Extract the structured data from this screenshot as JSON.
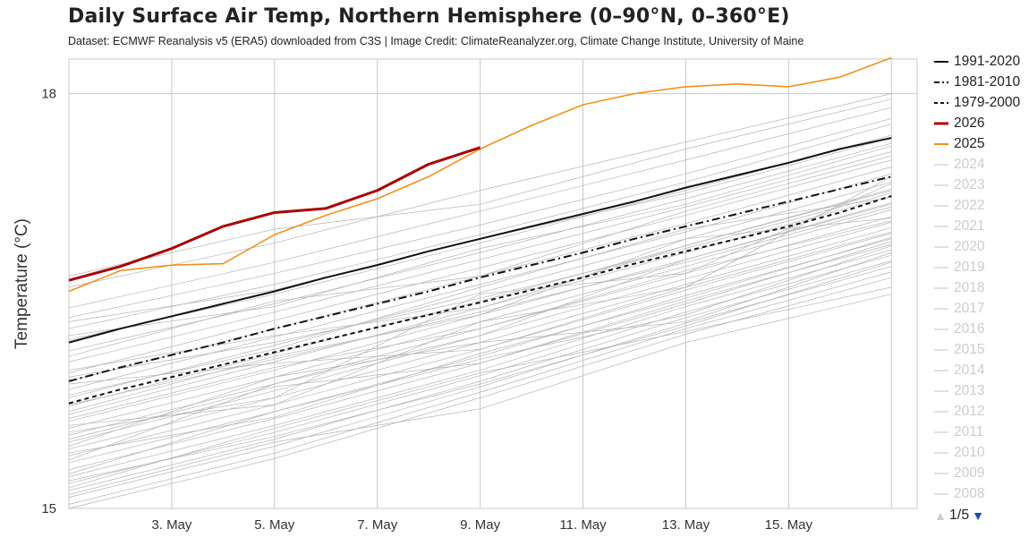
{
  "header": {
    "title": "Daily Surface Air Temp, Northern Hemisphere (0–90°N, 0–360°E)",
    "subtitle": "Dataset: ECMWF Reanalysis v5 (ERA5) downloaded from C3S | Image Credit: ClimateReanalyzer.org, Climate Change Institute, University of Maine"
  },
  "legend_nav": {
    "page": "1/5",
    "up_icon": "triangle-up-icon",
    "down_icon": "triangle-down-icon"
  },
  "colors": {
    "y2026": "#aa0000",
    "y2025": "#f39019",
    "climatology": "#111111",
    "other_years": "#b4b4b4",
    "grid": "#c8c8c8",
    "nav": "#1f4aa8"
  },
  "chart_data": {
    "type": "line",
    "title": "Daily Surface Air Temp, Northern Hemisphere (0–90°N, 0–360°E)",
    "ylabel": "Temperature (°C)",
    "xlabel": "",
    "ylim": [
      15,
      18.25
    ],
    "yticks": [
      "15",
      "18"
    ],
    "x_range": [
      "1. May",
      "17. May"
    ],
    "x_tick_labels": [
      "3. May",
      "5. May",
      "7. May",
      "9. May",
      "11. May",
      "13. May",
      "15. May"
    ],
    "grid": true,
    "legend_position": "right",
    "series": [
      {
        "name": "1991-2020",
        "style": "solid",
        "color": "#111111",
        "x": [
          1,
          2,
          3,
          4,
          5,
          6,
          7,
          8,
          9,
          10,
          11,
          12,
          13,
          14,
          15,
          16,
          17
        ],
        "values": [
          16.2,
          16.3,
          16.39,
          16.48,
          16.57,
          16.67,
          16.76,
          16.86,
          16.95,
          17.04,
          17.13,
          17.22,
          17.32,
          17.41,
          17.5,
          17.6,
          17.68
        ]
      },
      {
        "name": "1981-2010",
        "style": "dashdot",
        "color": "#111111",
        "x": [
          1,
          2,
          3,
          4,
          5,
          6,
          7,
          8,
          9,
          10,
          11,
          12,
          13,
          14,
          15,
          16,
          17
        ],
        "values": [
          15.92,
          16.02,
          16.11,
          16.2,
          16.3,
          16.39,
          16.48,
          16.57,
          16.67,
          16.76,
          16.85,
          16.95,
          17.04,
          17.13,
          17.22,
          17.31,
          17.4
        ]
      },
      {
        "name": "1979-2000",
        "style": "dashed",
        "color": "#111111",
        "x": [
          1,
          2,
          3,
          4,
          5,
          6,
          7,
          8,
          9,
          10,
          11,
          12,
          13,
          14,
          15,
          16,
          17
        ],
        "values": [
          15.76,
          15.86,
          15.95,
          16.04,
          16.13,
          16.22,
          16.31,
          16.4,
          16.49,
          16.58,
          16.67,
          16.77,
          16.86,
          16.95,
          17.04,
          17.14,
          17.26
        ]
      },
      {
        "name": "2026",
        "style": "solid",
        "color": "#aa0000",
        "x": [
          1,
          2,
          3,
          4,
          5,
          6,
          7,
          8,
          9
        ],
        "values": [
          16.65,
          16.75,
          16.88,
          17.04,
          17.14,
          17.17,
          17.3,
          17.49,
          17.61
        ]
      },
      {
        "name": "2025",
        "style": "solid",
        "color": "#f39019",
        "x": [
          1,
          2,
          3,
          4,
          5,
          6,
          7,
          8,
          9,
          10,
          11,
          12,
          13,
          14,
          15,
          16,
          17
        ],
        "values": [
          16.57,
          16.72,
          16.76,
          16.77,
          16.98,
          17.12,
          17.24,
          17.4,
          17.6,
          17.77,
          17.92,
          18.0,
          18.05,
          18.07,
          18.05,
          18.12,
          18.26
        ]
      },
      {
        "name": "2024",
        "hidden": true
      },
      {
        "name": "2023",
        "hidden": true
      },
      {
        "name": "2022",
        "hidden": true
      },
      {
        "name": "2021",
        "hidden": true
      },
      {
        "name": "2020",
        "hidden": true
      },
      {
        "name": "2019",
        "hidden": true
      },
      {
        "name": "2018",
        "hidden": true
      },
      {
        "name": "2017",
        "hidden": true
      },
      {
        "name": "2016",
        "hidden": true
      },
      {
        "name": "2015",
        "hidden": true
      },
      {
        "name": "2014",
        "hidden": true
      },
      {
        "name": "2013",
        "hidden": true
      },
      {
        "name": "2012",
        "hidden": true
      },
      {
        "name": "2011",
        "hidden": true
      },
      {
        "name": "2010",
        "hidden": true
      },
      {
        "name": "2009",
        "hidden": true
      },
      {
        "name": "2008",
        "hidden": true
      }
    ],
    "background_years": {
      "color": "#b4b4b4",
      "x": [
        1,
        5,
        9,
        13,
        17
      ],
      "years": [
        [
          16.6,
          16.92,
          17.3,
          17.65,
          18.0
        ],
        [
          16.68,
          17.02,
          17.2,
          17.6,
          17.96
        ],
        [
          16.45,
          16.78,
          17.15,
          17.52,
          17.9
        ],
        [
          16.38,
          16.7,
          17.05,
          17.42,
          17.82
        ],
        [
          16.3,
          16.62,
          16.98,
          17.36,
          17.78
        ],
        [
          16.22,
          16.55,
          16.92,
          17.3,
          17.7
        ],
        [
          16.14,
          16.48,
          16.85,
          17.24,
          17.64
        ],
        [
          16.06,
          16.42,
          16.8,
          17.18,
          17.58
        ],
        [
          15.98,
          16.36,
          16.74,
          17.12,
          17.52
        ],
        [
          15.92,
          16.3,
          16.68,
          17.06,
          17.47
        ],
        [
          15.86,
          16.24,
          16.62,
          17.0,
          17.42
        ],
        [
          15.8,
          16.18,
          16.56,
          16.95,
          17.36
        ],
        [
          15.74,
          16.12,
          16.5,
          16.9,
          17.31
        ],
        [
          15.68,
          16.06,
          16.45,
          16.85,
          17.26
        ],
        [
          15.63,
          16.0,
          16.4,
          16.8,
          17.21
        ],
        [
          15.58,
          15.95,
          16.35,
          16.75,
          17.16
        ],
        [
          15.53,
          15.9,
          16.3,
          16.7,
          17.11
        ],
        [
          15.48,
          15.85,
          16.25,
          16.66,
          17.07
        ],
        [
          15.43,
          15.8,
          16.2,
          16.62,
          17.03
        ],
        [
          15.38,
          15.75,
          16.15,
          16.58,
          16.99
        ],
        [
          15.33,
          15.7,
          16.1,
          16.54,
          16.95
        ],
        [
          15.28,
          15.65,
          16.05,
          16.5,
          16.91
        ],
        [
          15.23,
          15.6,
          16.0,
          16.46,
          16.87
        ],
        [
          15.18,
          15.55,
          15.96,
          16.42,
          16.83
        ],
        [
          15.13,
          15.5,
          15.92,
          16.38,
          16.79
        ],
        [
          15.08,
          15.45,
          15.88,
          16.34,
          16.75
        ],
        [
          15.03,
          15.4,
          15.84,
          16.3,
          16.71
        ],
        [
          15.0,
          15.36,
          15.8,
          16.26,
          16.67
        ],
        [
          15.45,
          15.95,
          16.2,
          16.35,
          16.85
        ],
        [
          15.7,
          16.1,
          16.4,
          16.95,
          17.1
        ],
        [
          15.55,
          15.8,
          16.55,
          16.7,
          17.35
        ],
        [
          15.9,
          16.05,
          16.15,
          16.6,
          17.0
        ],
        [
          15.35,
          15.9,
          16.25,
          16.8,
          17.2
        ],
        [
          15.6,
          15.75,
          16.35,
          16.6,
          17.4
        ],
        [
          16.0,
          16.25,
          16.45,
          16.9,
          17.3
        ],
        [
          15.25,
          15.7,
          16.08,
          16.4,
          16.9
        ],
        [
          15.15,
          15.58,
          15.98,
          16.28,
          16.6
        ],
        [
          15.5,
          15.88,
          16.05,
          16.48,
          16.93
        ],
        [
          15.82,
          16.15,
          16.6,
          17.02,
          17.25
        ],
        [
          16.1,
          16.5,
          16.68,
          17.15,
          17.55
        ],
        [
          15.4,
          15.66,
          16.12,
          16.52,
          16.96
        ],
        [
          15.1,
          15.48,
          15.72,
          16.2,
          16.55
        ],
        [
          16.25,
          16.46,
          16.88,
          17.2,
          17.62
        ],
        [
          15.65,
          16.02,
          16.3,
          16.72,
          17.08
        ],
        [
          15.95,
          16.2,
          16.52,
          16.88,
          17.28
        ],
        [
          15.2,
          15.52,
          15.9,
          16.32,
          16.78
        ],
        [
          15.75,
          16.08,
          16.42,
          16.78,
          17.18
        ],
        [
          16.35,
          16.58,
          16.95,
          17.28,
          17.68
        ]
      ]
    }
  }
}
